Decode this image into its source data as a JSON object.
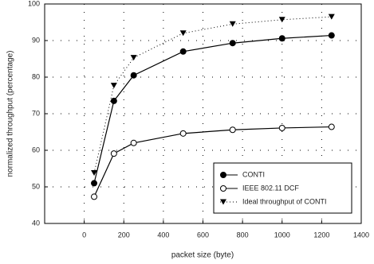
{
  "chart_data": {
    "type": "line",
    "x_label": "packet size (byte)",
    "y_label": "normalized throughput (percentage)",
    "x": [
      50,
      150,
      250,
      500,
      750,
      1000,
      1250
    ],
    "series": [
      {
        "name": "CONTI",
        "color": "#000000",
        "marker": "filled-circle",
        "line": "solid",
        "values": [
          51,
          73.5,
          80.5,
          87,
          89.3,
          90.6,
          91.4
        ]
      },
      {
        "name": "IEEE 802.11 DCF",
        "color": "#000000",
        "marker": "open-circle",
        "line": "solid",
        "values": [
          47.3,
          59.1,
          62,
          64.6,
          65.6,
          66.1,
          66.4
        ]
      },
      {
        "name": "Ideal throughput of CONTI",
        "color": "#000000",
        "marker": "triangle-down",
        "line": "dotted",
        "values": [
          53.8,
          77.7,
          85.3,
          92,
          94.5,
          95.7,
          96.5
        ]
      }
    ],
    "xlim": [
      -200,
      1400
    ],
    "xticks": [
      0,
      200,
      400,
      600,
      800,
      1000,
      1200,
      1400
    ],
    "ylim": [
      40,
      100
    ],
    "yticks": [
      40,
      50,
      60,
      70,
      80,
      90,
      100
    ],
    "grid": true,
    "legend": "lower-right"
  }
}
